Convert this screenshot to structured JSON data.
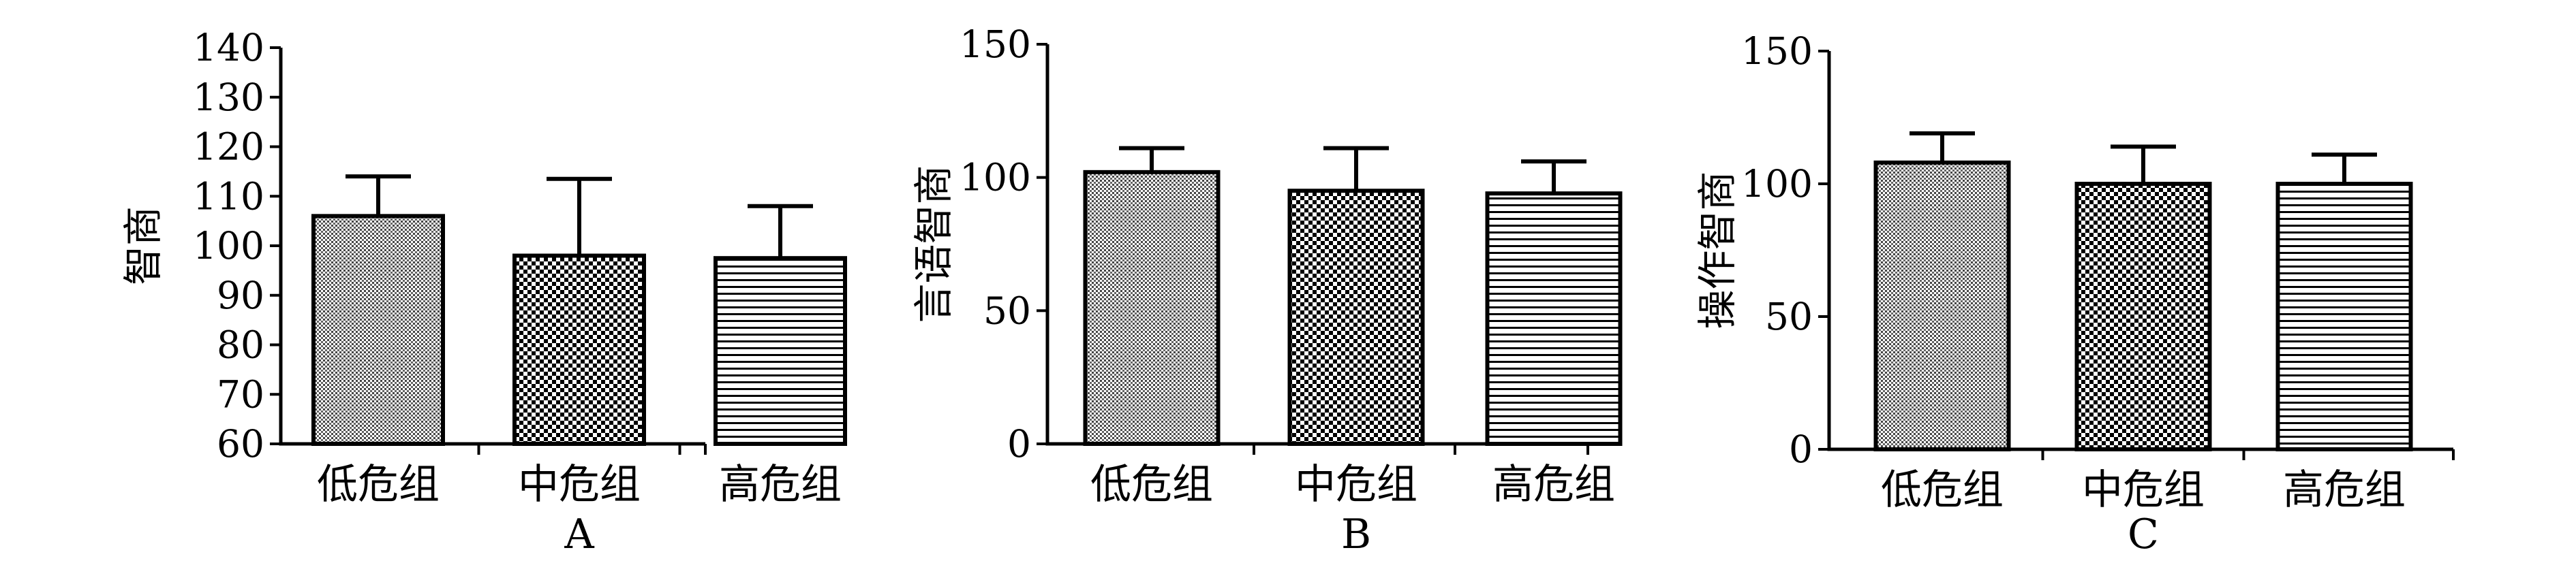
{
  "chart_data": [
    {
      "type": "bar",
      "panel": "A",
      "ylabel": "智商",
      "ylim": [
        60,
        140
      ],
      "yticks": [
        60,
        70,
        80,
        90,
        100,
        110,
        120,
        130,
        140
      ],
      "categories": [
        "低危组",
        "中危组",
        "高危组"
      ],
      "values": [
        106,
        98,
        97.5
      ],
      "error_upper": [
        114,
        113.5,
        108
      ],
      "patterns": [
        "fine-dots",
        "checker",
        "hlines"
      ]
    },
    {
      "type": "bar",
      "panel": "B",
      "ylabel": "言语智商",
      "ylim": [
        0,
        150
      ],
      "yticks": [
        0,
        50,
        100,
        150
      ],
      "categories": [
        "低危组",
        "中危组",
        "高危组"
      ],
      "values": [
        102,
        95,
        94
      ],
      "error_upper": [
        111,
        111,
        106
      ],
      "patterns": [
        "fine-dots",
        "checker",
        "hlines"
      ]
    },
    {
      "type": "bar",
      "panel": "C",
      "ylabel": "操作智商",
      "ylim": [
        0,
        150
      ],
      "yticks": [
        0,
        50,
        100,
        150
      ],
      "categories": [
        "低危组",
        "中危组",
        "高危组"
      ],
      "values": [
        108,
        100,
        100
      ],
      "error_upper": [
        119,
        114,
        111
      ],
      "patterns": [
        "fine-dots",
        "checker",
        "hlines"
      ]
    }
  ]
}
